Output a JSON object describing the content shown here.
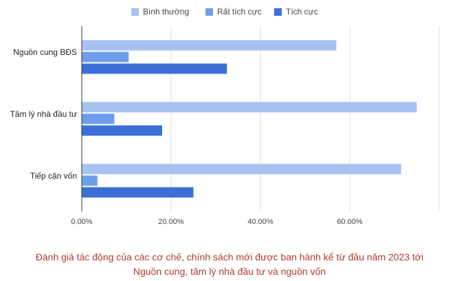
{
  "chart_data": {
    "type": "bar",
    "orientation": "horizontal",
    "categories": [
      "Nguồn cung BĐS",
      "Tâm lý nhà đầu tư",
      "Tiếp cận vốn"
    ],
    "series": [
      {
        "name": "Bình thường",
        "color": "#a7c1f0",
        "values": [
          57,
          75,
          71.5
        ]
      },
      {
        "name": "Rất tích cực",
        "color": "#6d9eeb",
        "values": [
          10.5,
          7.3,
          3.5
        ]
      },
      {
        "name": "Tích cực",
        "color": "#3c6fd8",
        "values": [
          32.5,
          18,
          25
        ]
      }
    ],
    "xlim": [
      0,
      80
    ],
    "xticks": [
      "0.00%",
      "20.00%",
      "40.00%",
      "60.00%"
    ],
    "grid": true,
    "legend_position": "top"
  },
  "caption": {
    "line1": "Đánh giá tác động của các cơ chế, chính sách mới được ban hành kể từ đầu năm 2023 tới",
    "line2": "Nguồn cung, tâm lý nhà đầu tư và nguồn vốn"
  }
}
